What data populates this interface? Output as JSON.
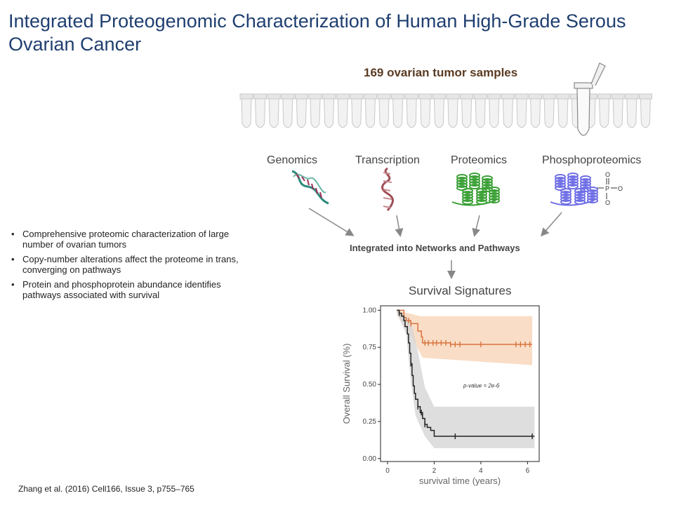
{
  "slide": {
    "title": "Integrated Proteogenomic Characterization of Human High-Grade Serous Ovarian Cancer",
    "citation": "Zhang et al. (2016) Cell166, Issue 3, p755–765"
  },
  "diagram": {
    "samples_label": "169 ovarian tumor samples",
    "omics": [
      {
        "label": "Genomics",
        "icon": "dna-helix-icon"
      },
      {
        "label": "Transcription",
        "icon": "rna-strand-icon"
      },
      {
        "label": "Proteomics",
        "icon": "protein-structure-icon"
      },
      {
        "label": "Phosphoproteomics",
        "icon": "phosphoprotein-structure-icon"
      }
    ],
    "phosphate_text": [
      "O",
      "P",
      "O",
      "O"
    ],
    "integrated_label": "Integrated into Networks and Pathways",
    "survival_title": "Survival Signatures"
  },
  "bullets": [
    "Comprehensive proteomic characterization of large number of ovarian tumors",
    "Copy-number alterations affect the proteome in trans, converging on pathways",
    "Protein and phosphoprotein abundance identifies pathways associated with survival"
  ],
  "colors": {
    "title": "#1f3f70",
    "samples_label": "#5a3b22",
    "dna": "#2d8a7a",
    "rna": "#a04e57",
    "protein": "#3aa035",
    "phosphoprotein": "#6f6ee6",
    "series_high": "#d9733d",
    "band_high": "#f8d5b8",
    "series_low": "#222222",
    "band_low": "#d6d6d6"
  },
  "chart_data": {
    "type": "line",
    "subtype": "kaplan-meier",
    "xlabel": "survival time (years)",
    "ylabel": "Overall Survival (%)",
    "xlim": [
      -0.3,
      6.5
    ],
    "ylim": [
      -0.02,
      1.03
    ],
    "x_ticks": [
      "0",
      "2",
      "4",
      "6"
    ],
    "y_ticks": [
      "0.00",
      "0.25",
      "0.50",
      "0.75",
      "1.00"
    ],
    "annotation": "p-value = 2e-6",
    "series": [
      {
        "color": "#d9733d",
        "steps": [
          [
            0.4,
            1.0
          ],
          [
            0.7,
            0.95
          ],
          [
            0.8,
            0.93
          ],
          [
            1.0,
            0.91
          ],
          [
            1.3,
            0.86
          ],
          [
            1.45,
            0.82
          ],
          [
            1.5,
            0.78
          ],
          [
            2.7,
            0.77
          ],
          [
            6.2,
            0.77
          ]
        ],
        "censor_x": [
          0.9,
          1.0,
          1.6,
          1.75,
          1.95,
          2.1,
          2.3,
          2.5,
          2.7,
          2.9,
          3.1,
          4.0,
          5.5,
          5.7,
          5.9,
          6.1
        ],
        "band_upper": [
          [
            0.4,
            1.0
          ],
          [
            1.4,
            0.96
          ],
          [
            6.2,
            0.96
          ]
        ],
        "band_lower": [
          [
            0.4,
            0.97
          ],
          [
            1.0,
            0.83
          ],
          [
            1.5,
            0.68
          ],
          [
            6.2,
            0.63
          ]
        ]
      },
      {
        "color": "#222222",
        "steps": [
          [
            0.4,
            1.0
          ],
          [
            0.5,
            0.98
          ],
          [
            0.6,
            0.96
          ],
          [
            0.7,
            0.93
          ],
          [
            0.75,
            0.89
          ],
          [
            0.85,
            0.84
          ],
          [
            0.9,
            0.78
          ],
          [
            0.95,
            0.71
          ],
          [
            1.0,
            0.64
          ],
          [
            1.05,
            0.56
          ],
          [
            1.1,
            0.49
          ],
          [
            1.15,
            0.44
          ],
          [
            1.2,
            0.4
          ],
          [
            1.3,
            0.35
          ],
          [
            1.4,
            0.31
          ],
          [
            1.5,
            0.27
          ],
          [
            1.6,
            0.23
          ],
          [
            1.7,
            0.21
          ],
          [
            1.85,
            0.19
          ],
          [
            2.0,
            0.15
          ],
          [
            6.3,
            0.15
          ]
        ],
        "censor_x": [
          0.5,
          1.0,
          1.3,
          1.45,
          1.6,
          2.9,
          6.2
        ],
        "band_upper": [
          [
            0.4,
            1.0
          ],
          [
            1.0,
            0.93
          ],
          [
            1.3,
            0.72
          ],
          [
            1.6,
            0.48
          ],
          [
            2.0,
            0.35
          ],
          [
            6.3,
            0.35
          ]
        ],
        "band_lower": [
          [
            0.4,
            0.98
          ],
          [
            0.8,
            0.84
          ],
          [
            1.0,
            0.52
          ],
          [
            1.2,
            0.29
          ],
          [
            1.6,
            0.15
          ],
          [
            2.0,
            0.07
          ],
          [
            6.3,
            0.07
          ]
        ]
      }
    ]
  }
}
